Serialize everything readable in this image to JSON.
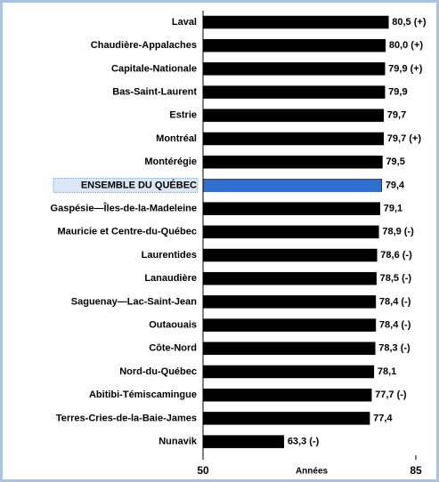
{
  "chart_data": {
    "type": "hbar",
    "categories": [
      "Laval",
      "Chaudière-Appalaches",
      "Capitale-Nationale",
      "Bas-Saint-Laurent",
      "Estrie",
      "Montréal",
      "Montérégie",
      "ENSEMBLE DU QUÉBEC",
      "Gaspésie—Îles-de-la-Madeleine",
      "Mauricie et Centre-du-Québec",
      "Laurentides",
      "Lanaudière",
      "Saguenay—Lac-Saint-Jean",
      "Outaouais",
      "Côte-Nord",
      "Nord-du-Québec",
      "Abitibi-Témiscamingue",
      "Terres-Cries-de-la-Baie-James",
      "Nunavik"
    ],
    "values": [
      80.5,
      80.0,
      79.9,
      79.9,
      79.7,
      79.7,
      79.5,
      79.4,
      79.1,
      78.9,
      78.6,
      78.5,
      78.4,
      78.4,
      78.3,
      78.1,
      77.7,
      77.4,
      63.3
    ],
    "value_labels": [
      "80,5 (+)",
      "80,0 (+)",
      "79,9 (+)",
      "79,9",
      "79,7",
      "79,7 (+)",
      "79,5",
      "79,4",
      "79,1",
      "78,9 (-)",
      "78,6 (-)",
      "78,5 (-)",
      "78,4 (-)",
      "78,4 (-)",
      "78,3 (-)",
      "78,1",
      "77,7 (-)",
      "77,4",
      "63,3 (-)"
    ],
    "color": "#000000",
    "highlight": {
      "index": 7,
      "color": "#2f6fd0"
    },
    "x_label": "Années",
    "xlim": [
      50,
      85
    ],
    "xticks": [
      50,
      85
    ]
  }
}
